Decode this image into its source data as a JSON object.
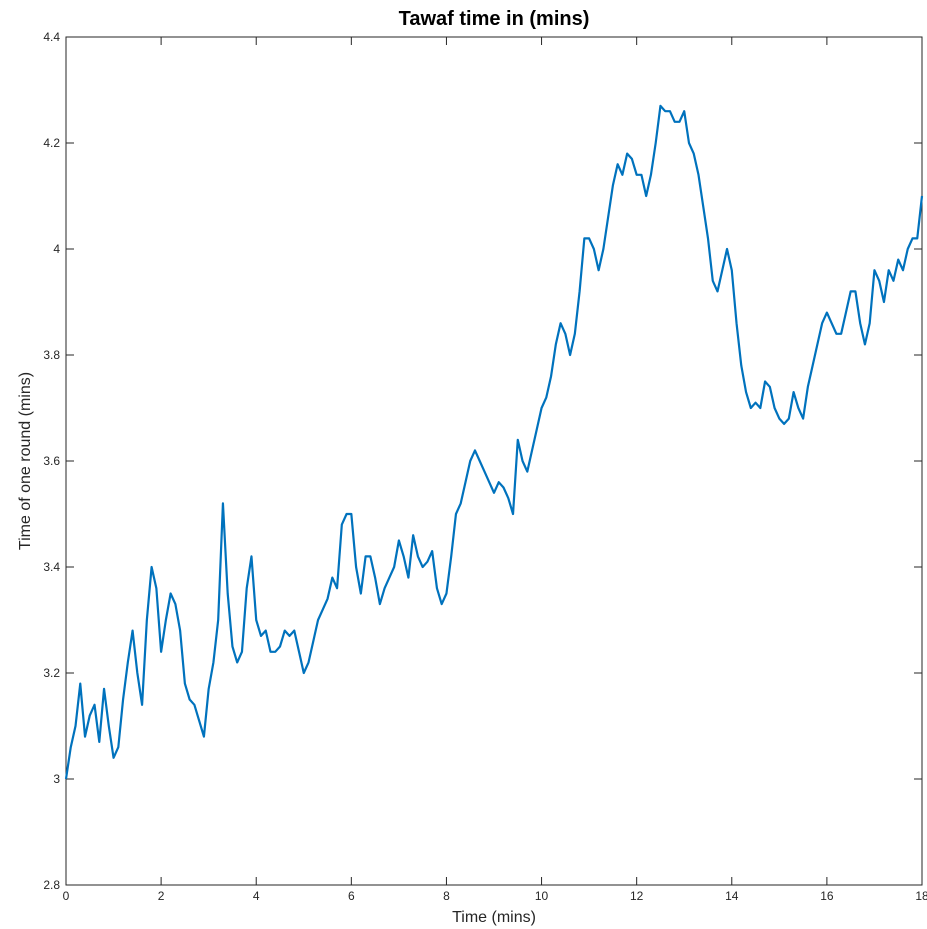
{
  "chart_data": {
    "type": "line",
    "title": "Tawaf time in (mins)",
    "x_label": "Time (mins)",
    "y_label": "Time of one round (mins)",
    "x": [
      0,
      0.1,
      0.2,
      0.3,
      0.4,
      0.5,
      0.6,
      0.7,
      0.8,
      0.9,
      1,
      1.1,
      1.2,
      1.3,
      1.4,
      1.5,
      1.6,
      1.7,
      1.8,
      1.9,
      2,
      2.1,
      2.2,
      2.3,
      2.4,
      2.5,
      2.6,
      2.7,
      2.8,
      2.9,
      3,
      3.1,
      3.2,
      3.3,
      3.4,
      3.5,
      3.6,
      3.7,
      3.8,
      3.9,
      4,
      4.1,
      4.2,
      4.3,
      4.4,
      4.5,
      4.6,
      4.7,
      4.8,
      4.9,
      5,
      5.1,
      5.2,
      5.3,
      5.4,
      5.5,
      5.6,
      5.7,
      5.8,
      5.9,
      6,
      6.1,
      6.2,
      6.3,
      6.4,
      6.5,
      6.6,
      6.7,
      6.8,
      6.9,
      7,
      7.1,
      7.2,
      7.3,
      7.4,
      7.5,
      7.6,
      7.7,
      7.8,
      7.9,
      8,
      8.1,
      8.2,
      8.3,
      8.4,
      8.5,
      8.6,
      8.7,
      8.8,
      8.9,
      9,
      9.1,
      9.2,
      9.3,
      9.4,
      9.5,
      9.6,
      9.7,
      9.8,
      9.9,
      10,
      10.1,
      10.2,
      10.3,
      10.4,
      10.5,
      10.6,
      10.7,
      10.8,
      10.9,
      11,
      11.1,
      11.2,
      11.3,
      11.4,
      11.5,
      11.6,
      11.7,
      11.8,
      11.9,
      12,
      12.1,
      12.2,
      12.3,
      12.4,
      12.5,
      12.6,
      12.7,
      12.8,
      12.9,
      13,
      13.1,
      13.2,
      13.3,
      13.4,
      13.5,
      13.6,
      13.7,
      13.8,
      13.9,
      14,
      14.1,
      14.2,
      14.3,
      14.4,
      14.5,
      14.6,
      14.7,
      14.8,
      14.9,
      15,
      15.1,
      15.2,
      15.3,
      15.4,
      15.5,
      15.6,
      15.7,
      15.8,
      15.9,
      16,
      16.1,
      16.2,
      16.3,
      16.4,
      16.5,
      16.6,
      16.7,
      16.8,
      16.9,
      17,
      17.1,
      17.2,
      17.3,
      17.4,
      17.5,
      17.6,
      17.7,
      17.8,
      17.9,
      18
    ],
    "series": [
      {
        "name": "Tawaf time",
        "color": "#0072bd",
        "values": [
          3.0,
          3.06,
          3.1,
          3.18,
          3.08,
          3.12,
          3.14,
          3.07,
          3.17,
          3.1,
          3.04,
          3.06,
          3.15,
          3.22,
          3.28,
          3.2,
          3.14,
          3.3,
          3.4,
          3.36,
          3.24,
          3.3,
          3.35,
          3.33,
          3.28,
          3.18,
          3.15,
          3.14,
          3.11,
          3.08,
          3.17,
          3.22,
          3.3,
          3.52,
          3.35,
          3.25,
          3.22,
          3.24,
          3.36,
          3.42,
          3.3,
          3.27,
          3.28,
          3.24,
          3.24,
          3.25,
          3.28,
          3.27,
          3.28,
          3.24,
          3.2,
          3.22,
          3.26,
          3.3,
          3.32,
          3.34,
          3.38,
          3.36,
          3.48,
          3.5,
          3.5,
          3.4,
          3.35,
          3.42,
          3.42,
          3.38,
          3.33,
          3.36,
          3.38,
          3.4,
          3.45,
          3.42,
          3.38,
          3.46,
          3.42,
          3.4,
          3.41,
          3.43,
          3.36,
          3.33,
          3.35,
          3.42,
          3.5,
          3.52,
          3.56,
          3.6,
          3.62,
          3.6,
          3.58,
          3.56,
          3.54,
          3.56,
          3.55,
          3.53,
          3.5,
          3.64,
          3.6,
          3.58,
          3.62,
          3.66,
          3.7,
          3.72,
          3.76,
          3.82,
          3.86,
          3.84,
          3.8,
          3.84,
          3.92,
          4.02,
          4.02,
          4.0,
          3.96,
          4.0,
          4.06,
          4.12,
          4.16,
          4.14,
          4.18,
          4.17,
          4.14,
          4.14,
          4.1,
          4.14,
          4.2,
          4.27,
          4.26,
          4.26,
          4.24,
          4.24,
          4.26,
          4.2,
          4.18,
          4.14,
          4.08,
          4.02,
          3.94,
          3.92,
          3.96,
          4.0,
          3.96,
          3.86,
          3.78,
          3.73,
          3.7,
          3.71,
          3.7,
          3.75,
          3.74,
          3.7,
          3.68,
          3.67,
          3.68,
          3.73,
          3.7,
          3.68,
          3.74,
          3.78,
          3.82,
          3.86,
          3.88,
          3.86,
          3.84,
          3.84,
          3.88,
          3.92,
          3.92,
          3.86,
          3.82,
          3.86,
          3.96,
          3.94,
          3.9,
          3.96,
          3.94,
          3.98,
          3.96,
          4.0,
          4.02,
          4.02,
          4.1
        ]
      }
    ],
    "xlim": [
      0,
      18
    ],
    "xticks": [
      0,
      2,
      4,
      6,
      8,
      10,
      12,
      14,
      16,
      18
    ],
    "ylim": [
      2.8,
      4.4
    ],
    "yticks": [
      2.8,
      3,
      3.2,
      3.4,
      3.6,
      3.8,
      4,
      4.2,
      4.4
    ]
  }
}
